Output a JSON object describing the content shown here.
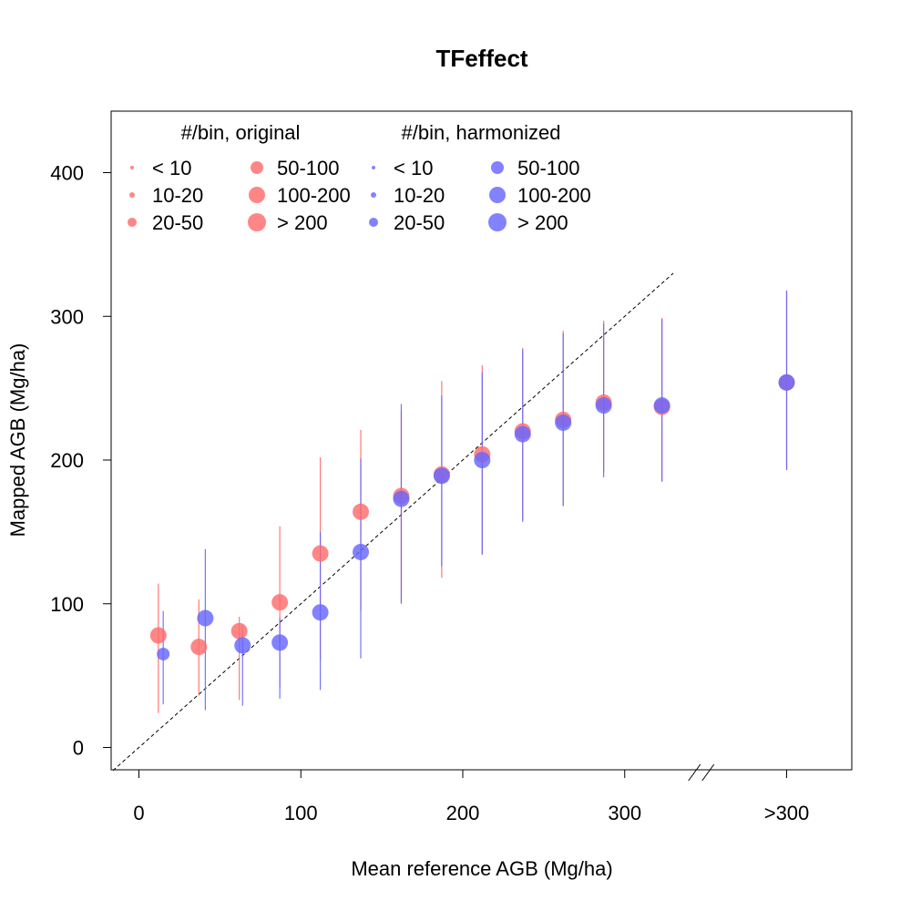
{
  "chart_data": {
    "type": "scatter",
    "title": "TFeffect",
    "xlabel": "Mean reference AGB (Mg/ha)",
    "ylabel": "Mapped AGB (Mg/ha)",
    "xlim": [
      -17,
      330
    ],
    "ylim": [
      -16,
      443
    ],
    "x_ticks": [
      {
        "value": 0,
        "label": "0"
      },
      {
        "value": 100,
        "label": "100"
      },
      {
        "value": 200,
        "label": "200"
      },
      {
        "value": 300,
        "label": "300"
      },
      {
        "value": 400,
        "label": ">300"
      }
    ],
    "y_ticks": [
      {
        "value": 0,
        "label": "0"
      },
      {
        "value": 100,
        "label": "100"
      },
      {
        "value": 200,
        "label": "200"
      },
      {
        "value": 300,
        "label": "300"
      },
      {
        "value": 400,
        "label": "400"
      }
    ],
    "axis_break": "x axis between 300 and >300",
    "reference_line": "1:1 dashed",
    "series": [
      {
        "name": "original",
        "color": "#ff6b6b",
        "points": [
          {
            "x": 12,
            "y": 78,
            "low": 24,
            "high": 114,
            "size_class": "100-200"
          },
          {
            "x": 37,
            "y": 70,
            "low": 36,
            "high": 103,
            "size_class": "100-200"
          },
          {
            "x": 62,
            "y": 81,
            "low": 33,
            "high": 91,
            "size_class": "100-200"
          },
          {
            "x": 87,
            "y": 101,
            "low": 42,
            "high": 154,
            "size_class": "100-200"
          },
          {
            "x": 112,
            "y": 135,
            "low": 61,
            "high": 202,
            "size_class": "100-200"
          },
          {
            "x": 137,
            "y": 164,
            "low": 95,
            "high": 221,
            "size_class": "100-200"
          },
          {
            "x": 162,
            "y": 175,
            "low": 101,
            "high": 234,
            "size_class": "100-200"
          },
          {
            "x": 187,
            "y": 190,
            "low": 118,
            "high": 255,
            "size_class": "100-200"
          },
          {
            "x": 212,
            "y": 204,
            "low": 135,
            "high": 266,
            "size_class": "100-200"
          },
          {
            "x": 237,
            "y": 220,
            "low": 158,
            "high": 278,
            "size_class": "100-200"
          },
          {
            "x": 262,
            "y": 228,
            "low": 168,
            "high": 290,
            "size_class": "100-200"
          },
          {
            "x": 287,
            "y": 240,
            "low": 192,
            "high": 297,
            "size_class": "100-200"
          },
          {
            "x": 323,
            "y": 237,
            "low": 185,
            "high": 299,
            "size_class": "100-200"
          },
          {
            "x": 400,
            "y": 254,
            "low": 193,
            "high": 318,
            "size_class": "100-200"
          }
        ]
      },
      {
        "name": "harmonized",
        "color": "#6666ff",
        "points": [
          {
            "x": 15,
            "y": 65,
            "low": 30,
            "high": 95,
            "size_class": "50-100"
          },
          {
            "x": 41,
            "y": 90,
            "low": 26,
            "high": 138,
            "size_class": "100-200"
          },
          {
            "x": 64,
            "y": 71,
            "low": 29,
            "high": 85,
            "size_class": "100-200"
          },
          {
            "x": 87,
            "y": 73,
            "low": 34,
            "high": 90,
            "size_class": "100-200"
          },
          {
            "x": 112,
            "y": 94,
            "low": 40,
            "high": 150,
            "size_class": "100-200"
          },
          {
            "x": 137,
            "y": 136,
            "low": 62,
            "high": 201,
            "size_class": "100-200"
          },
          {
            "x": 162,
            "y": 173,
            "low": 100,
            "high": 239,
            "size_class": "100-200"
          },
          {
            "x": 187,
            "y": 189,
            "low": 126,
            "high": 245,
            "size_class": "100-200"
          },
          {
            "x": 212,
            "y": 200,
            "low": 134,
            "high": 261,
            "size_class": "100-200"
          },
          {
            "x": 237,
            "y": 218,
            "low": 157,
            "high": 277,
            "size_class": "100-200"
          },
          {
            "x": 262,
            "y": 226,
            "low": 168,
            "high": 288,
            "size_class": "100-200"
          },
          {
            "x": 287,
            "y": 238,
            "low": 188,
            "high": 295,
            "size_class": "100-200"
          },
          {
            "x": 323,
            "y": 238,
            "low": 185,
            "high": 298,
            "size_class": "100-200"
          },
          {
            "x": 400,
            "y": 254,
            "low": 193,
            "high": 318,
            "size_class": "100-200"
          }
        ]
      }
    ],
    "legend": {
      "placement": "top-left",
      "original_title": "#/bin, original",
      "harmonized_title": "#/bin, harmonized",
      "original_color": "#ff6b6b",
      "harmonized_color": "#6666ff",
      "classes": [
        "< 10",
        "10-20",
        "20-50",
        "50-100",
        "100-200",
        "> 200"
      ]
    }
  }
}
